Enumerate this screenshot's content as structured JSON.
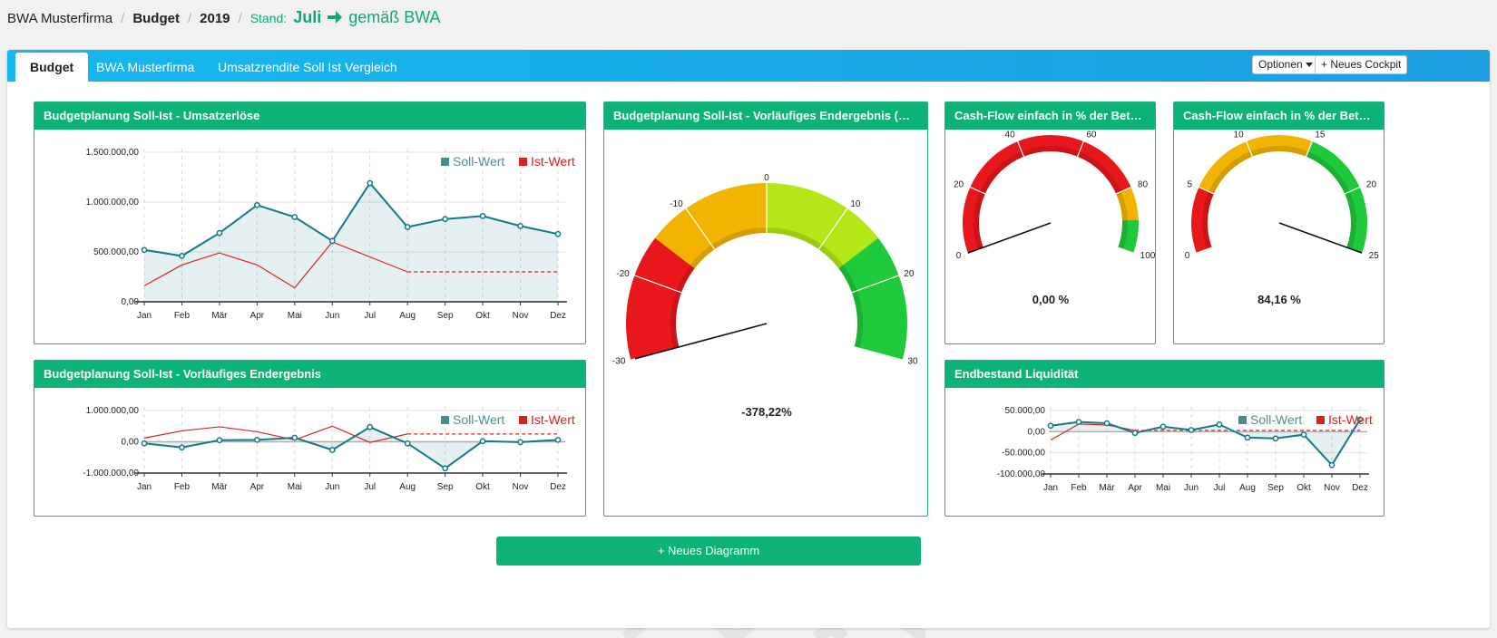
{
  "breadcrumb": {
    "company": "BWA Musterfirma",
    "section": "Budget",
    "year": "2019",
    "stand_label": "Stand:",
    "stand_month": "Juli",
    "stand_source": "gemäß BWA"
  },
  "tabs": [
    {
      "label": "Budget",
      "active": true
    },
    {
      "label": "BWA Musterfirma",
      "active": false
    },
    {
      "label": "Umsatzrendite Soll Ist Vergleich",
      "active": false
    }
  ],
  "toolbar": {
    "options_label": "Optionen",
    "new_cockpit_label": "+ Neues Cockpit"
  },
  "colors": {
    "accent": "#0db277",
    "tab_blue": "#15b7ee",
    "soll": "#137a86",
    "ist": "#d9211f"
  },
  "months": [
    "Jan",
    "Feb",
    "Mär",
    "Apr",
    "Mai",
    "Jun",
    "Jul",
    "Aug",
    "Sep",
    "Okt",
    "Nov",
    "Dez"
  ],
  "legend": {
    "soll": "Soll-Wert",
    "ist": "Ist-Wert"
  },
  "widgets": {
    "umsatz": {
      "title": "Budgetplanung Soll-Ist - Umsatzerlöse",
      "chart_data": {
        "type": "line",
        "ylim": [
          0,
          1500000
        ],
        "yticks": [
          "1.500.000,00",
          "1.000.000,00",
          "500.000,00",
          "0,00"
        ],
        "yvals": [
          1500000,
          1000000,
          500000,
          0
        ],
        "grid": true,
        "legend_position": "top-right",
        "series": [
          {
            "name": "Soll-Wert",
            "values": [
              520000,
              460000,
              690000,
              970000,
              850000,
              610000,
              1190000,
              750000,
              830000,
              860000,
              760000,
              680000
            ]
          },
          {
            "name": "Ist-Wert",
            "values": [
              160000,
              370000,
              490000,
              370000,
              140000,
              600000,
              450000,
              300000,
              null,
              null,
              null,
              null
            ],
            "forecast_to": 300000
          }
        ]
      }
    },
    "endergebnis": {
      "title": "Budgetplanung Soll-Ist - Vorläufiges Endergebnis",
      "chart_data": {
        "type": "line",
        "ylim": [
          -1000000,
          1000000
        ],
        "yticks": [
          "1.000.000,00",
          "0,00",
          "-1.000.000,00"
        ],
        "yvals": [
          1000000,
          0,
          -1000000
        ],
        "grid": true,
        "legend_position": "top-right",
        "series": [
          {
            "name": "Soll-Wert",
            "values": [
              -50000,
              -180000,
              50000,
              60000,
              130000,
              -260000,
              470000,
              -50000,
              -850000,
              20000,
              -10000,
              60000
            ]
          },
          {
            "name": "Ist-Wert",
            "values": [
              120000,
              350000,
              480000,
              320000,
              60000,
              500000,
              -20000,
              250000,
              null,
              null,
              null,
              null
            ],
            "forecast_to": 250000
          }
        ]
      }
    },
    "abweichung": {
      "title": "Budgetplanung Soll-Ist - Vorläufiges Endergebnis (Abweichung)",
      "gauge": {
        "min": -30,
        "max": 30,
        "ticks": [
          "-30",
          "-20",
          "-10",
          "0",
          "10",
          "20",
          "30"
        ],
        "tick_values": [
          -30,
          -20,
          -10,
          0,
          10,
          20,
          30
        ],
        "bands": [
          {
            "from": -30,
            "to": -15,
            "color": "#e8171b"
          },
          {
            "from": -15,
            "to": 0,
            "color": "#f2b400"
          },
          {
            "from": 0,
            "to": 15,
            "color": "#b5e617"
          },
          {
            "from": 15,
            "to": 30,
            "color": "#1ec93a"
          }
        ],
        "value": -378.22,
        "value_label": "-378,22%"
      }
    },
    "cashflow1": {
      "title": "Cash-Flow einfach in % der Betriebsleistung",
      "gauge": {
        "min": 0,
        "max": 100,
        "ticks": [
          "0",
          "20",
          "40",
          "60",
          "80",
          "100"
        ],
        "tick_values": [
          0,
          20,
          40,
          60,
          80,
          100
        ],
        "bands": [
          {
            "from": 0,
            "to": 80,
            "color": "#e8171b"
          },
          {
            "from": 80,
            "to": 90,
            "color": "#f2b400"
          },
          {
            "from": 90,
            "to": 100,
            "color": "#1ec93a"
          }
        ],
        "value": 0.0,
        "value_label": "0,00 %"
      }
    },
    "cashflow2": {
      "title": "Cash-Flow einfach in % der Betriebsleistung",
      "gauge": {
        "min": 0,
        "max": 25,
        "ticks": [
          "0",
          "5",
          "10",
          "15",
          "20",
          "25"
        ],
        "tick_values": [
          0,
          5,
          10,
          15,
          20,
          25
        ],
        "bands": [
          {
            "from": 0,
            "to": 5,
            "color": "#e8171b"
          },
          {
            "from": 5,
            "to": 15,
            "color": "#f2b400"
          },
          {
            "from": 15,
            "to": 25,
            "color": "#1ec93a"
          }
        ],
        "value": 84.16,
        "value_label": "84,16 %"
      }
    },
    "liquiditaet": {
      "title": "Endbestand Liquidität",
      "chart_data": {
        "type": "line",
        "ylim": [
          -100000,
          50000
        ],
        "yticks": [
          "50.000,00",
          "0,00",
          "-50.000,00",
          "-100.000,00"
        ],
        "yvals": [
          50000,
          0,
          -50000,
          -100000
        ],
        "grid": true,
        "legend_position": "top-right",
        "series": [
          {
            "name": "Soll-Wert",
            "values": [
              14000,
              23000,
              20000,
              -3000,
              12000,
              4000,
              17000,
              -14000,
              -16000,
              -7000,
              -79000,
              29000
            ]
          },
          {
            "name": "Ist-Wert",
            "values": [
              -20000,
              18000,
              16000,
              3000,
              null,
              null,
              null,
              null,
              null,
              null,
              null,
              null
            ],
            "forecast_to": 3000
          }
        ]
      }
    }
  },
  "new_diagram_label": "+ Neues Diagramm"
}
